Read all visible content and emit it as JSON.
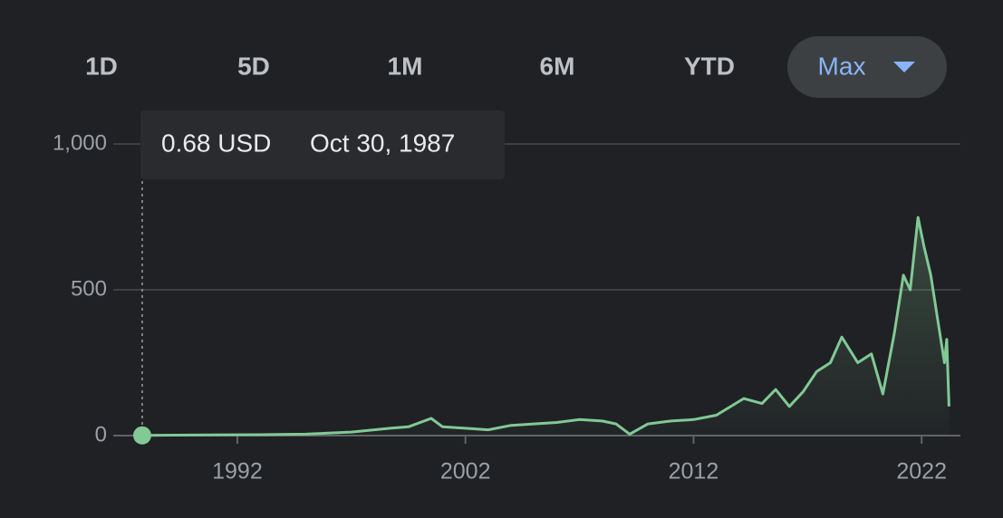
{
  "tabs": [
    "1D",
    "5D",
    "1M",
    "6M",
    "YTD",
    "Max"
  ],
  "tooltip": {
    "price": "0.68 USD",
    "date": "Oct 30, 1987"
  },
  "chart_data": {
    "type": "line",
    "color": "#81c995",
    "x": [
      1987.83,
      1990,
      1993,
      1995,
      1997,
      1998.7,
      1999.5,
      2000.5,
      2001,
      2002,
      2003,
      2004,
      2005,
      2006,
      2007,
      2008,
      2008.6,
      2009.2,
      2010,
      2011,
      2012,
      2013,
      2014.2,
      2015,
      2015.6,
      2016.2,
      2016.8,
      2017.4,
      2018,
      2018.5,
      2019.2,
      2019.8,
      2020.3,
      2020.8,
      2021.2,
      2021.5,
      2021.84,
      2022.1,
      2022.4,
      2022.7,
      2023,
      2023.1,
      2023.2
    ],
    "values": [
      0.68,
      2,
      3,
      5,
      12,
      25,
      30,
      59,
      30,
      25,
      20,
      35,
      40,
      45,
      55,
      50,
      40,
      5,
      40,
      50,
      55,
      70,
      127,
      110,
      158,
      100,
      150,
      220,
      250,
      338,
      250,
      280,
      143,
      350,
      550,
      500,
      748,
      650,
      550,
      400,
      250,
      330,
      100
    ],
    "xlim": [
      1986.56,
      2023.7
    ],
    "ylim": [
      0,
      1000
    ],
    "xticks": [
      1992,
      2002,
      2012,
      2022
    ],
    "yticks": [
      0,
      500,
      {
        "value": 1000,
        "label": "1,000"
      }
    ],
    "grid": true
  }
}
